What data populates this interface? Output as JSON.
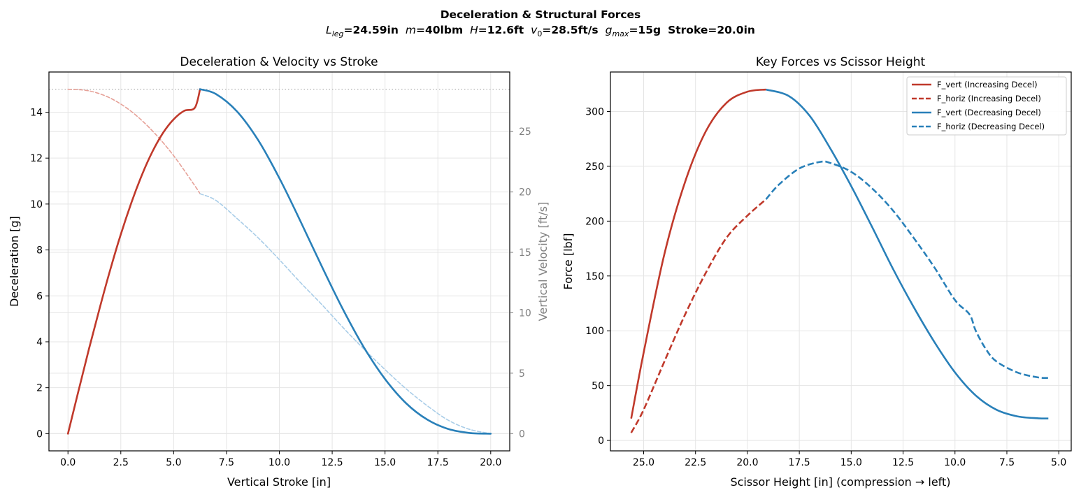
{
  "suptitle": {
    "line1": "Deceleration & Structural Forces",
    "line2": {
      "p1_sym": "L",
      "p1_sub": "leg",
      "p1_val": "=24.59in",
      "p2_sym": "m",
      "p2_val": "=40lbm",
      "p3_sym": "H",
      "p3_val": "=12.6ft",
      "p4_sym": "v",
      "p4_sub": "0",
      "p4_val": "=28.5ft/s",
      "p5_sym": "g",
      "p5_sub": "max",
      "p5_val": "=15g",
      "p6_val": "Stroke=20.0in"
    }
  },
  "colors": {
    "increasing": "#c0392b",
    "decreasing": "#2980b9",
    "increasing_light": "#e6a198",
    "decreasing_light": "#a9cde8",
    "grid": "#e5e5e5",
    "secondary_axis": "#808080",
    "gmax_line": "#b0b0b0"
  },
  "chart_data": [
    {
      "type": "line",
      "title": "Deceleration & Velocity vs Stroke",
      "xlabel": "Vertical Stroke [in]",
      "ylabel": "Deceleration [g]",
      "y2label": "Vertical Velocity [ft/s]",
      "xlim": [
        -0.9,
        20.9
      ],
      "ylim": [
        -0.75,
        15.75
      ],
      "y2lim": [
        -1.43,
        29.93
      ],
      "xticks": [
        0,
        2.5,
        5,
        7.5,
        10,
        12.5,
        15,
        17.5,
        20
      ],
      "xtick_labels": [
        "0.0",
        "2.5",
        "5.0",
        "7.5",
        "10.0",
        "12.5",
        "15.0",
        "17.5",
        "20.0"
      ],
      "yticks": [
        0,
        2,
        4,
        6,
        8,
        10,
        12,
        14
      ],
      "ytick_labels": [
        "0",
        "2",
        "4",
        "6",
        "8",
        "10",
        "12",
        "14"
      ],
      "y2ticks": [
        0,
        5,
        10,
        15,
        20,
        25
      ],
      "y2tick_labels": [
        "0",
        "5",
        "10",
        "15",
        "20",
        "25"
      ],
      "grid": true,
      "gmax_reference": 15,
      "peak_stroke": 6.25,
      "series": [
        {
          "x": [
            0,
            0.5,
            1,
            1.5,
            2,
            2.5,
            3,
            3.5,
            4,
            4.5,
            5,
            5.5,
            6,
            6.25
          ],
          "y": [
            0,
            1.87,
            3.71,
            5.47,
            7.14,
            8.68,
            10.06,
            11.27,
            12.29,
            13.1,
            13.69,
            14.06,
            14.19,
            15.0
          ]
        },
        {
          "x": [
            6.25,
            7,
            8,
            9,
            10,
            11,
            12,
            13,
            14,
            15,
            16,
            17,
            18,
            19,
            20
          ],
          "y": [
            15.0,
            14.79,
            14.03,
            12.78,
            11.13,
            9.25,
            7.3,
            5.43,
            3.76,
            2.38,
            1.32,
            0.61,
            0.2,
            0.03,
            0
          ]
        },
        {
          "x": [
            0,
            1,
            2,
            3,
            4,
            5,
            6,
            6.25
          ],
          "y": [
            28.5,
            28.37,
            27.77,
            26.66,
            25.05,
            23.0,
            20.52,
            19.85
          ]
        },
        {
          "x": [
            6.25,
            7,
            8,
            9,
            10,
            11,
            12,
            13,
            14,
            15,
            16,
            17,
            18,
            19,
            20
          ],
          "y": [
            19.85,
            19.3,
            17.8,
            16.2,
            14.4,
            12.5,
            10.7,
            8.8,
            7.0,
            5.3,
            3.7,
            2.3,
            1.1,
            0.35,
            0
          ]
        }
      ]
    },
    {
      "type": "line",
      "title": "Key Forces vs Scissor Height",
      "xlabel": "Scissor Height [in]  (compression → left)",
      "ylabel": "Force [lbf]",
      "x_inverted": true,
      "xlim": [
        26.6,
        4.4
      ],
      "ylim": [
        -9.5,
        336
      ],
      "xticks": [
        25,
        22.5,
        20,
        17.5,
        15,
        12.5,
        10,
        7.5,
        5
      ],
      "xtick_labels": [
        "25.0",
        "22.5",
        "20.0",
        "17.5",
        "15.0",
        "12.5",
        "10.0",
        "7.5",
        "5.0"
      ],
      "yticks": [
        0,
        50,
        100,
        150,
        200,
        250,
        300
      ],
      "ytick_labels": [
        "0",
        "50",
        "100",
        "150",
        "200",
        "250",
        "300"
      ],
      "grid": true,
      "legend": "top-right",
      "series": [
        {
          "name": "F_vert (Increasing Decel)",
          "style": "solid",
          "x": [
            25.6,
            25,
            24,
            23,
            22,
            21,
            20,
            19.1
          ],
          "y": [
            20,
            80,
            170,
            236,
            282,
            308,
            318,
            320
          ]
        },
        {
          "name": "F_horiz (Increasing Decel)",
          "style": "dashed",
          "x": [
            25.6,
            25,
            24,
            23,
            22,
            21,
            20,
            19.1
          ],
          "y": [
            7,
            28,
            72,
            115,
            153,
            185,
            205,
            220
          ]
        },
        {
          "name": "F_vert (Decreasing Decel)",
          "style": "solid",
          "x": [
            19.1,
            18,
            17,
            16,
            15,
            14,
            13,
            12,
            11,
            10,
            9,
            8,
            7,
            6,
            5.5
          ],
          "y": [
            320,
            314,
            296,
            266,
            232,
            195,
            157,
            122,
            90,
            62,
            41,
            28,
            22,
            20.2,
            20
          ]
        },
        {
          "name": "F_horiz (Decreasing Decel)",
          "style": "dashed",
          "x": [
            19.1,
            18.5,
            17.5,
            16.5,
            16,
            15,
            14,
            13,
            12,
            11,
            10,
            9.3,
            9,
            8.5,
            8,
            7,
            6,
            5.5
          ],
          "y": [
            220,
            233,
            248,
            254,
            253,
            245,
            230,
            210,
            185,
            158,
            128,
            115,
            100,
            83,
            72,
            62,
            57.5,
            57
          ]
        }
      ]
    }
  ]
}
